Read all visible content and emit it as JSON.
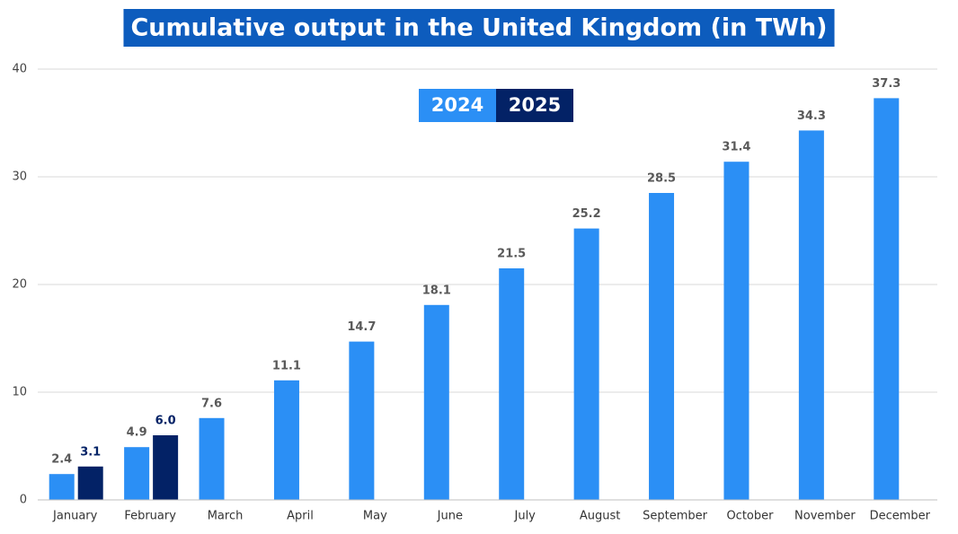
{
  "chart_data": {
    "type": "bar",
    "title": "Cumulative output in the United Kingdom (in TWh)",
    "categories": [
      "January",
      "February",
      "March",
      "April",
      "May",
      "June",
      "July",
      "August",
      "September",
      "October",
      "November",
      "December"
    ],
    "series": [
      {
        "name": "2024",
        "color": "#2b8ff5",
        "values": [
          2.4,
          4.9,
          7.6,
          11.1,
          14.7,
          18.1,
          21.5,
          25.2,
          28.5,
          31.4,
          34.3,
          37.3
        ]
      },
      {
        "name": "2025",
        "color": "#032266",
        "values": [
          3.1,
          6.0,
          null,
          null,
          null,
          null,
          null,
          null,
          null,
          null,
          null,
          null
        ],
        "value_labels": [
          "3.1",
          "6.0",
          null,
          null,
          null,
          null,
          null,
          null,
          null,
          null,
          null,
          null
        ]
      }
    ],
    "ylim": [
      0,
      40
    ],
    "yticks": [
      0,
      10,
      20,
      30,
      40
    ],
    "grid": true
  }
}
